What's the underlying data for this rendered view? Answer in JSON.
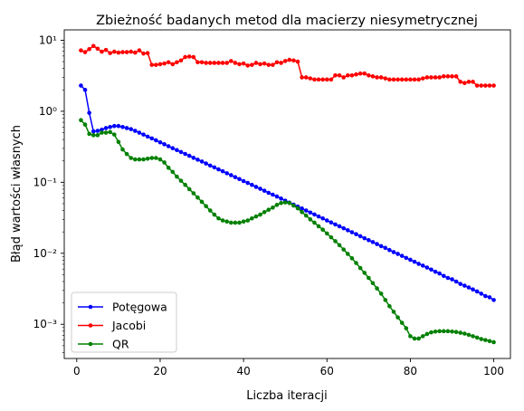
{
  "chart_data": {
    "type": "line",
    "title": "Zbieżność badanych metod dla macierzy niesymetrycznej",
    "xlabel": "Liczba iteracji",
    "ylabel": "Błąd wartości własnych",
    "xlim": [
      -3,
      104
    ],
    "ylim": [
      0.00033,
      14
    ],
    "yscale": "log",
    "grid": false,
    "legend_position": "lower-left",
    "x_ticks": [
      0,
      20,
      40,
      60,
      80,
      100
    ],
    "x_tick_labels": [
      "0",
      "20",
      "40",
      "60",
      "80",
      "100"
    ],
    "y_ticks": [
      0.001,
      0.01,
      0.1,
      1,
      10
    ],
    "y_tick_labels": [
      "10⁻³",
      "10⁻²",
      "10⁻¹",
      "10⁰",
      "10¹"
    ],
    "x": [
      1,
      2,
      3,
      4,
      5,
      6,
      7,
      8,
      9,
      10,
      11,
      12,
      13,
      14,
      15,
      16,
      17,
      18,
      19,
      20,
      21,
      22,
      23,
      24,
      25,
      26,
      27,
      28,
      29,
      30,
      31,
      32,
      33,
      34,
      35,
      36,
      37,
      38,
      39,
      40,
      41,
      42,
      43,
      44,
      45,
      46,
      47,
      48,
      49,
      50,
      51,
      52,
      53,
      54,
      55,
      56,
      57,
      58,
      59,
      60,
      61,
      62,
      63,
      64,
      65,
      66,
      67,
      68,
      69,
      70,
      71,
      72,
      73,
      74,
      75,
      76,
      77,
      78,
      79,
      80,
      81,
      82,
      83,
      84,
      85,
      86,
      87,
      88,
      89,
      90,
      91,
      92,
      93,
      94,
      95,
      96,
      97,
      98,
      99,
      100
    ],
    "series": [
      {
        "name": "Potęgowa",
        "color": "#0000ff",
        "values": [
          2.3,
          2.0,
          0.95,
          0.52,
          0.53,
          0.55,
          0.58,
          0.6,
          0.62,
          0.62,
          0.6,
          0.58,
          0.56,
          0.53,
          0.5,
          0.47,
          0.44,
          0.415,
          0.39,
          0.365,
          0.343,
          0.322,
          0.302,
          0.284,
          0.267,
          0.251,
          0.236,
          0.221,
          0.208,
          0.196,
          0.184,
          0.172,
          0.162,
          0.152,
          0.143,
          0.134,
          0.126,
          0.118,
          0.111,
          0.104,
          0.098,
          0.092,
          0.086,
          0.081,
          0.076,
          0.071,
          0.067,
          0.063,
          0.059,
          0.055,
          0.0517,
          0.0485,
          0.0455,
          0.0427,
          0.04,
          0.0375,
          0.0352,
          0.033,
          0.031,
          0.029,
          0.0272,
          0.0255,
          0.024,
          0.0225,
          0.0211,
          0.0198,
          0.0186,
          0.0174,
          0.0163,
          0.0153,
          0.0144,
          0.0135,
          0.0126,
          0.0119,
          0.0111,
          0.0104,
          0.0098,
          0.0092,
          0.0086,
          0.0081,
          0.0076,
          0.0071,
          0.0067,
          0.0063,
          0.0059,
          0.0055,
          0.0052,
          0.0048,
          0.0045,
          0.0043,
          0.004,
          0.0037,
          0.0035,
          0.0033,
          0.0031,
          0.0029,
          0.0027,
          0.0025,
          0.0024,
          0.0022
        ]
      },
      {
        "name": "Jacobi",
        "color": "#ff0000",
        "values": [
          7.2,
          6.8,
          7.5,
          8.3,
          7.6,
          6.9,
          7.3,
          6.6,
          6.9,
          6.7,
          6.8,
          6.8,
          6.9,
          6.7,
          7.2,
          6.5,
          6.6,
          4.5,
          4.5,
          4.6,
          4.7,
          4.9,
          4.6,
          4.9,
          5.2,
          5.8,
          5.9,
          5.8,
          4.9,
          4.9,
          4.8,
          4.8,
          4.8,
          4.8,
          4.8,
          4.8,
          5.1,
          4.8,
          4.6,
          4.7,
          4.4,
          4.5,
          4.8,
          4.6,
          4.7,
          4.5,
          4.5,
          4.9,
          4.8,
          5.1,
          5.3,
          5.2,
          5.0,
          3.0,
          3.0,
          2.9,
          2.8,
          2.8,
          2.8,
          2.8,
          2.8,
          3.2,
          3.2,
          3.0,
          3.2,
          3.2,
          3.3,
          3.4,
          3.4,
          3.2,
          3.1,
          3.0,
          3.0,
          2.9,
          2.8,
          2.8,
          2.8,
          2.8,
          2.8,
          2.8,
          2.8,
          2.8,
          2.9,
          3.0,
          3.0,
          3.0,
          3.0,
          3.1,
          3.1,
          3.1,
          3.1,
          2.6,
          2.5,
          2.6,
          2.6,
          2.3,
          2.3,
          2.3,
          2.3,
          2.3
        ]
      },
      {
        "name": "QR",
        "color": "#008000",
        "values": [
          0.75,
          0.65,
          0.48,
          0.46,
          0.46,
          0.5,
          0.5,
          0.51,
          0.47,
          0.37,
          0.29,
          0.25,
          0.22,
          0.21,
          0.21,
          0.21,
          0.215,
          0.22,
          0.22,
          0.21,
          0.19,
          0.16,
          0.14,
          0.12,
          0.105,
          0.092,
          0.08,
          0.07,
          0.061,
          0.053,
          0.046,
          0.04,
          0.035,
          0.031,
          0.029,
          0.028,
          0.027,
          0.027,
          0.027,
          0.028,
          0.029,
          0.031,
          0.033,
          0.035,
          0.038,
          0.041,
          0.044,
          0.048,
          0.051,
          0.052,
          0.051,
          0.047,
          0.043,
          0.038,
          0.034,
          0.03,
          0.027,
          0.024,
          0.0215,
          0.019,
          0.0168,
          0.0148,
          0.013,
          0.0113,
          0.0098,
          0.0085,
          0.0073,
          0.0062,
          0.0053,
          0.0045,
          0.0038,
          0.0032,
          0.0027,
          0.0022,
          0.0018,
          0.0015,
          0.00125,
          0.00105,
          0.00088,
          0.00068,
          0.00063,
          0.00063,
          0.00068,
          0.00073,
          0.00077,
          0.00079,
          0.0008,
          0.0008,
          0.0008,
          0.00079,
          0.00078,
          0.00076,
          0.00074,
          0.00071,
          0.00068,
          0.00065,
          0.00062,
          0.0006,
          0.00058,
          0.00056
        ]
      }
    ]
  }
}
